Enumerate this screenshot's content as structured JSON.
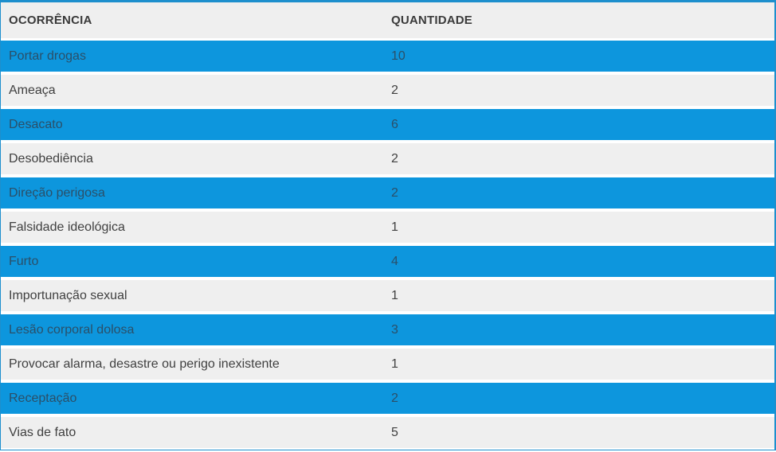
{
  "chart_data": {
    "type": "table",
    "columns": [
      "OCORRÊNCIA",
      "QUANTIDADE"
    ],
    "rows": [
      {
        "ocorrencia": "Portar drogas",
        "quantidade": "10"
      },
      {
        "ocorrencia": "Ameaça",
        "quantidade": "2"
      },
      {
        "ocorrencia": "Desacato",
        "quantidade": "6"
      },
      {
        "ocorrencia": "Desobediência",
        "quantidade": "2"
      },
      {
        "ocorrencia": "Direção perigosa",
        "quantidade": "2"
      },
      {
        "ocorrencia": "Falsidade ideológica",
        "quantidade": "1"
      },
      {
        "ocorrencia": "Furto",
        "quantidade": "4"
      },
      {
        "ocorrencia": "Importunação sexual",
        "quantidade": "1"
      },
      {
        "ocorrencia": "Lesão corporal dolosa",
        "quantidade": "3"
      },
      {
        "ocorrencia": "Provocar alarma, desastre ou perigo inexistente",
        "quantidade": "1"
      },
      {
        "ocorrencia": "Receptação",
        "quantidade": "2"
      },
      {
        "ocorrencia": "Vias de fato",
        "quantidade": "5"
      }
    ],
    "layout": {
      "striping": "odd rows blue, even rows gray",
      "grid": "off",
      "row_separator": "white gap"
    }
  },
  "colors": {
    "row_blue": "#0d96dd",
    "row_gray": "#efefef",
    "border_blue": "#1d8fcd",
    "text_header": "#3a3a3a",
    "text_dark": "#404040",
    "text_on_blue": "#2b4f68"
  }
}
